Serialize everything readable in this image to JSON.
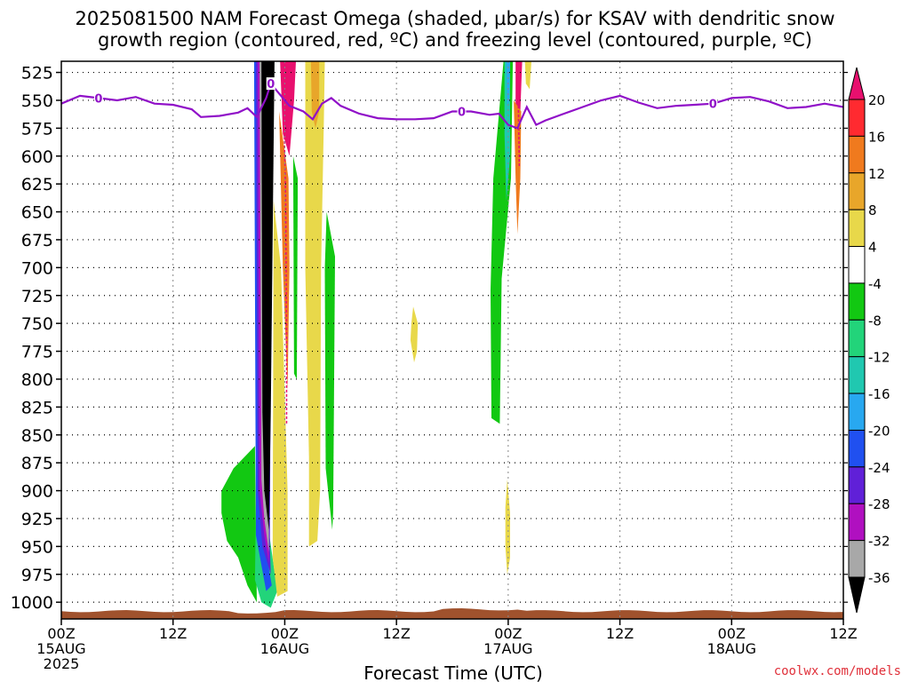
{
  "chart_data": {
    "type": "heatmap",
    "title_line1": "2025081500 NAM Forecast Omega (shaded, µbar/s) for KSAV with dendritic snow",
    "title_line2": "growth region (contoured, red, ºC) and freezing level (contoured, purple, ºC)",
    "xlabel": "Forecast Time (UTC)",
    "x_range_hours": [
      0,
      84
    ],
    "x_ticks": [
      {
        "hour": 0,
        "label1": "00Z",
        "label2": "15AUG",
        "label3": "2025"
      },
      {
        "hour": 12,
        "label1": "12Z",
        "label2": "",
        "label3": ""
      },
      {
        "hour": 24,
        "label1": "00Z",
        "label2": "16AUG",
        "label3": ""
      },
      {
        "hour": 36,
        "label1": "12Z",
        "label2": "",
        "label3": ""
      },
      {
        "hour": 48,
        "label1": "00Z",
        "label2": "17AUG",
        "label3": ""
      },
      {
        "hour": 60,
        "label1": "12Z",
        "label2": "",
        "label3": ""
      },
      {
        "hour": 72,
        "label1": "00Z",
        "label2": "18AUG",
        "label3": ""
      },
      {
        "hour": 84,
        "label1": "12Z",
        "label2": "",
        "label3": ""
      }
    ],
    "y_range_hpa": [
      515,
      1015
    ],
    "y_ticks": [
      "525",
      "550",
      "575",
      "600",
      "625",
      "650",
      "675",
      "700",
      "725",
      "750",
      "775",
      "800",
      "825",
      "850",
      "875",
      "900",
      "925",
      "950",
      "975",
      "1000"
    ],
    "grid": true,
    "colorbar": {
      "position": "right",
      "labels": [
        "20",
        "16",
        "12",
        "8",
        "4",
        "-4",
        "-8",
        "-12",
        "-16",
        "-20",
        "-24",
        "-28",
        "-32",
        "-36"
      ],
      "colors": [
        "#e8106e",
        "#ff2a30",
        "#f07a1e",
        "#e8a62a",
        "#e8d84a",
        "#ffffff",
        "#12c812",
        "#22d47a",
        "#20c8b0",
        "#28a8f0",
        "#2050f0",
        "#6020d8",
        "#b010c0",
        "#a8a8a8",
        "#000000"
      ]
    },
    "freezing_level": {
      "label": "0",
      "color": "#9010c8",
      "points": [
        [
          0,
          553
        ],
        [
          2,
          546
        ],
        [
          4,
          548
        ],
        [
          6,
          550
        ],
        [
          8,
          547
        ],
        [
          10,
          553
        ],
        [
          12,
          554
        ],
        [
          14,
          558
        ],
        [
          15,
          565
        ],
        [
          17,
          564
        ],
        [
          19,
          561
        ],
        [
          20,
          557
        ],
        [
          21,
          565
        ],
        [
          22,
          548
        ],
        [
          22.5,
          535
        ],
        [
          23.5,
          545
        ],
        [
          24.5,
          555
        ],
        [
          26,
          560
        ],
        [
          27,
          567
        ],
        [
          28,
          553
        ],
        [
          29,
          548
        ],
        [
          30,
          555
        ],
        [
          32,
          562
        ],
        [
          34,
          566
        ],
        [
          36,
          567
        ],
        [
          38,
          567
        ],
        [
          40,
          566
        ],
        [
          42,
          560
        ],
        [
          44,
          560
        ],
        [
          46,
          563
        ],
        [
          47,
          562
        ],
        [
          48,
          572
        ],
        [
          49,
          575
        ],
        [
          50,
          556
        ],
        [
          51,
          572
        ],
        [
          52,
          568
        ],
        [
          54,
          562
        ],
        [
          56,
          556
        ],
        [
          58,
          550
        ],
        [
          60,
          546
        ],
        [
          62,
          552
        ],
        [
          64,
          557
        ],
        [
          66,
          555
        ],
        [
          68,
          554
        ],
        [
          70,
          553
        ],
        [
          72,
          548
        ],
        [
          74,
          547
        ],
        [
          76,
          551
        ],
        [
          78,
          557
        ],
        [
          80,
          556
        ],
        [
          82,
          553
        ],
        [
          84,
          556
        ]
      ]
    },
    "freezing_level_label_hours": [
      4,
      43,
      70,
      22.5
    ],
    "omega_regions": [
      {
        "name": "green-1",
        "color": "#12c812",
        "points": [
          [
            17.2,
            900
          ],
          [
            18.5,
            880
          ],
          [
            20.8,
            860
          ],
          [
            21,
            1000
          ],
          [
            20,
            985
          ],
          [
            19,
            960
          ],
          [
            17.8,
            945
          ],
          [
            17.2,
            920
          ]
        ]
      },
      {
        "name": "teal-1",
        "color": "#22d47a",
        "points": [
          [
            21,
            860
          ],
          [
            23.2,
            990
          ],
          [
            22.5,
            1005
          ],
          [
            21.5,
            1000
          ],
          [
            20.8,
            980
          ]
        ]
      },
      {
        "name": "blue-1",
        "color": "#2050f0",
        "points": [
          [
            20.7,
            515
          ],
          [
            21.3,
            515
          ],
          [
            21.5,
            930
          ],
          [
            22.6,
            985
          ],
          [
            22,
            990
          ],
          [
            20.9,
            940
          ]
        ]
      },
      {
        "name": "purple-1",
        "color": "#6020d8",
        "points": [
          [
            20.9,
            515
          ],
          [
            22.6,
            515
          ],
          [
            22.4,
            950
          ],
          [
            22.5,
            975
          ],
          [
            21.6,
            950
          ],
          [
            21.1,
            900
          ]
        ]
      },
      {
        "name": "magenta-1",
        "color": "#b010c0",
        "points": [
          [
            21.1,
            515
          ],
          [
            22.7,
            515
          ],
          [
            22.3,
            940
          ],
          [
            22.3,
            965
          ],
          [
            21.8,
            940
          ],
          [
            21.3,
            900
          ]
        ]
      },
      {
        "name": "gray-1",
        "color": "#a8a8a8",
        "points": [
          [
            21.3,
            515
          ],
          [
            22.8,
            515
          ],
          [
            22.3,
            925
          ],
          [
            22.3,
            955
          ],
          [
            21.8,
            925
          ],
          [
            21.5,
            890
          ]
        ]
      },
      {
        "name": "black-core",
        "color": "#000000",
        "points": [
          [
            21.5,
            515
          ],
          [
            22.9,
            515
          ],
          [
            22.5,
            830
          ],
          [
            22.3,
            935
          ],
          [
            21.8,
            900
          ],
          [
            21.6,
            830
          ]
        ]
      },
      {
        "name": "yellow-1",
        "color": "#e8d84a",
        "points": [
          [
            22.8,
            640
          ],
          [
            23.6,
            700
          ],
          [
            24.3,
            900
          ],
          [
            24.3,
            990
          ],
          [
            23.2,
            995
          ],
          [
            22.7,
            960
          ]
        ]
      },
      {
        "name": "magenta-top-1",
        "color": "#e8106e",
        "points": [
          [
            23.5,
            515
          ],
          [
            25.2,
            515
          ],
          [
            25,
            550
          ],
          [
            24.5,
            600
          ],
          [
            23.8,
            580
          ]
        ]
      },
      {
        "name": "orange-top-1",
        "color": "#f07a1e",
        "points": [
          [
            23.4,
            560
          ],
          [
            24.4,
            620
          ],
          [
            24.5,
            700
          ],
          [
            24.3,
            810
          ],
          [
            23.8,
            700
          ]
        ]
      },
      {
        "name": "green-strip-1",
        "color": "#12c812",
        "points": [
          [
            24.9,
            600
          ],
          [
            25.4,
            620
          ],
          [
            25.3,
            800
          ],
          [
            25,
            795
          ]
        ]
      },
      {
        "name": "yellow-2",
        "color": "#e8d84a",
        "points": [
          [
            26.2,
            515
          ],
          [
            28.3,
            515
          ],
          [
            28.2,
            570
          ],
          [
            27.9,
            700
          ],
          [
            27.8,
            900
          ],
          [
            27.5,
            945
          ],
          [
            26.6,
            950
          ],
          [
            26.6,
            870
          ],
          [
            26.2,
            700
          ]
        ]
      },
      {
        "name": "orange-2",
        "color": "#e8a62a",
        "points": [
          [
            26.8,
            515
          ],
          [
            27.7,
            515
          ],
          [
            27.7,
            560
          ],
          [
            27.3,
            575
          ],
          [
            26.9,
            560
          ]
        ]
      },
      {
        "name": "green-2",
        "color": "#12c812",
        "points": [
          [
            28.5,
            650
          ],
          [
            29.4,
            690
          ],
          [
            29.2,
            920
          ],
          [
            29.1,
            935
          ],
          [
            28.4,
            880
          ],
          [
            28.3,
            700
          ]
        ]
      },
      {
        "name": "yellow-3",
        "color": "#e8d84a",
        "points": [
          [
            37.8,
            735
          ],
          [
            38.3,
            750
          ],
          [
            38.2,
            775
          ],
          [
            37.9,
            785
          ],
          [
            37.5,
            765
          ],
          [
            37.6,
            750
          ]
        ]
      },
      {
        "name": "green-3",
        "color": "#12c812",
        "points": [
          [
            47.5,
            515
          ],
          [
            48.5,
            515
          ],
          [
            48.3,
            620
          ],
          [
            47.3,
            710
          ],
          [
            47.1,
            840
          ],
          [
            46.2,
            835
          ],
          [
            46.1,
            720
          ],
          [
            46.4,
            620
          ]
        ]
      },
      {
        "name": "teal-3",
        "color": "#20c8b0",
        "points": [
          [
            47.6,
            515
          ],
          [
            48.2,
            515
          ],
          [
            48.2,
            600
          ],
          [
            47.8,
            640
          ],
          [
            47.6,
            580
          ]
        ]
      },
      {
        "name": "blue-3",
        "color": "#28a8f0",
        "points": [
          [
            47.8,
            515
          ],
          [
            48.2,
            515
          ],
          [
            48.1,
            550
          ],
          [
            47.9,
            555
          ]
        ]
      },
      {
        "name": "magenta-top-3",
        "color": "#e8106e",
        "points": [
          [
            48.8,
            515
          ],
          [
            49.5,
            515
          ],
          [
            49.3,
            560
          ],
          [
            49,
            580
          ],
          [
            48.8,
            560
          ]
        ]
      },
      {
        "name": "orange-3",
        "color": "#f07a1e",
        "points": [
          [
            48.6,
            550
          ],
          [
            49.4,
            560
          ],
          [
            49.3,
            620
          ],
          [
            49,
            670
          ],
          [
            48.8,
            620
          ]
        ]
      },
      {
        "name": "yellow-top-3",
        "color": "#e8d84a",
        "points": [
          [
            49.8,
            515
          ],
          [
            50.5,
            515
          ],
          [
            50.3,
            540
          ],
          [
            49.9,
            535
          ]
        ]
      },
      {
        "name": "yellow-4",
        "color": "#e8d84a",
        "points": [
          [
            47.9,
            890
          ],
          [
            48.2,
            920
          ],
          [
            48.2,
            960
          ],
          [
            47.9,
            975
          ],
          [
            47.7,
            950
          ],
          [
            47.7,
            915
          ]
        ]
      }
    ],
    "dgz_contours": [
      {
        "color": "#e8106e",
        "points": [
          [
            23.6,
            515
          ],
          [
            23.9,
            560
          ],
          [
            24.1,
            640
          ],
          [
            24.2,
            760
          ],
          [
            24.2,
            840
          ]
        ]
      },
      {
        "color": "#e8106e",
        "points": [
          [
            49,
            515
          ],
          [
            49.1,
            560
          ],
          [
            49.2,
            610
          ]
        ]
      }
    ],
    "terrain_color": "#a0522d",
    "terrain_top_hpa": 1008
  },
  "credit": "coolwx.com/models"
}
